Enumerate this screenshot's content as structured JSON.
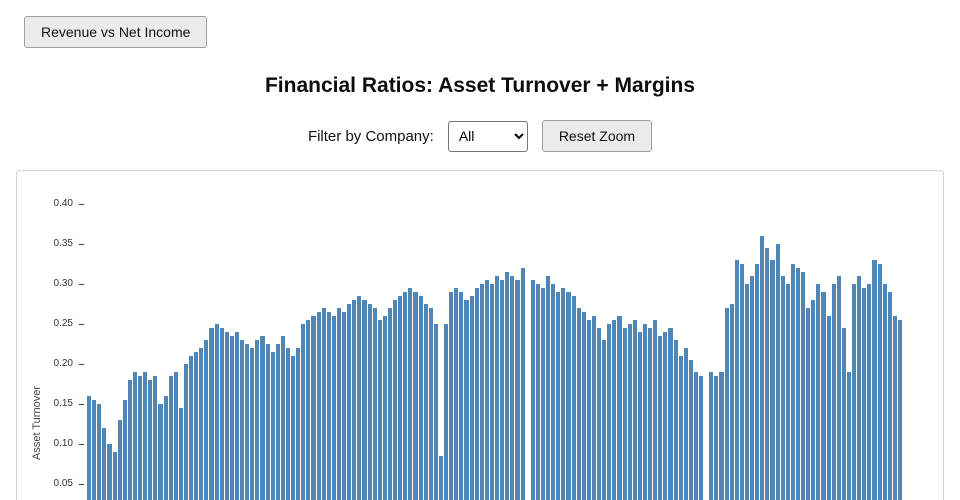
{
  "toolbar": {
    "nav_button_label": "Revenue vs Net Income"
  },
  "header": {
    "title": "Financial Ratios: Asset Turnover + Margins"
  },
  "controls": {
    "filter_label": "Filter by Company:",
    "filter_selected": "All",
    "reset_zoom_label": "Reset Zoom"
  },
  "colors": {
    "bar": "#4e86b8",
    "button_bg": "#ebebeb"
  },
  "chart_data": {
    "type": "bar",
    "title": "Financial Ratios: Asset Turnover + Margins",
    "xlabel": "",
    "ylabel": "Asset Turnover",
    "ylim": [
      0,
      0.4
    ],
    "yticks": [
      0.4,
      0.35,
      0.3,
      0.25,
      0.2,
      0.15,
      0.1,
      0.05
    ],
    "grid": false,
    "legend": false,
    "bar_color": "#4e86b8",
    "values": [
      0.16,
      0.155,
      0.15,
      0.12,
      0.1,
      0.09,
      0.13,
      0.155,
      0.18,
      0.19,
      0.185,
      0.19,
      0.18,
      0.185,
      0.15,
      0.16,
      0.185,
      0.19,
      0.145,
      0.2,
      0.21,
      0.215,
      0.22,
      0.23,
      0.245,
      0.25,
      0.245,
      0.24,
      0.235,
      0.24,
      0.23,
      0.225,
      0.22,
      0.23,
      0.235,
      0.225,
      0.215,
      0.225,
      0.235,
      0.22,
      0.21,
      0.22,
      0.25,
      0.255,
      0.26,
      0.265,
      0.27,
      0.265,
      0.26,
      0.27,
      0.265,
      0.275,
      0.28,
      0.285,
      0.28,
      0.275,
      0.27,
      0.255,
      0.26,
      0.27,
      0.28,
      0.285,
      0.29,
      0.295,
      0.29,
      0.285,
      0.275,
      0.27,
      0.25,
      0.085,
      0.25,
      0.29,
      0.295,
      0.29,
      0.28,
      0.285,
      0.295,
      0.3,
      0.305,
      0.3,
      0.31,
      0.305,
      0.315,
      0.31,
      0.305,
      0.32,
      0.02,
      0.305,
      0.3,
      0.295,
      0.31,
      0.3,
      0.29,
      0.295,
      0.29,
      0.285,
      0.27,
      0.265,
      0.255,
      0.26,
      0.245,
      0.23,
      0.25,
      0.255,
      0.26,
      0.245,
      0.25,
      0.255,
      0.24,
      0.25,
      0.245,
      0.255,
      0.235,
      0.24,
      0.245,
      0.23,
      0.21,
      0.22,
      0.205,
      0.19,
      0.185,
      0.02,
      0.19,
      0.185,
      0.19,
      0.27,
      0.275,
      0.33,
      0.325,
      0.3,
      0.31,
      0.325,
      0.36,
      0.345,
      0.33,
      0.35,
      0.31,
      0.3,
      0.325,
      0.32,
      0.315,
      0.27,
      0.28,
      0.3,
      0.29,
      0.26,
      0.3,
      0.31,
      0.245,
      0.19,
      0.3,
      0.31,
      0.295,
      0.3,
      0.33,
      0.325,
      0.3,
      0.29,
      0.26,
      0.255
    ]
  }
}
